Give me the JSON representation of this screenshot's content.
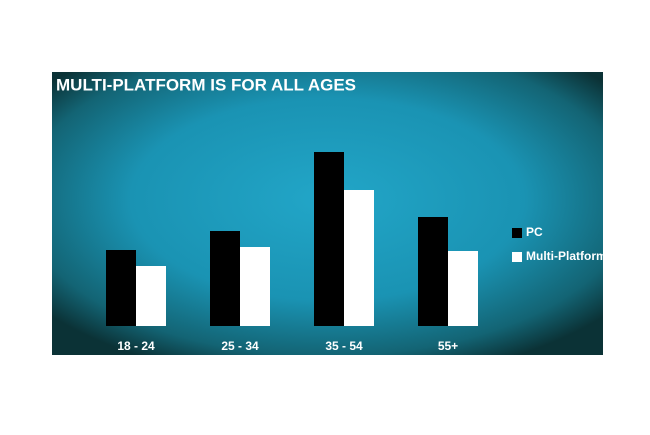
{
  "chart_data": {
    "type": "bar",
    "title": "MULTI-PLATFORM IS FOR ALL AGES",
    "categories": [
      "18 - 24",
      "25 - 34",
      "35 - 54",
      "55+"
    ],
    "series": [
      {
        "name": "PC",
        "color": "#000000",
        "values": [
          76,
          95,
          174,
          109
        ]
      },
      {
        "name": "Multi-Platform",
        "color": "#ffffff",
        "values": [
          60,
          79,
          136,
          75
        ]
      }
    ]
  }
}
